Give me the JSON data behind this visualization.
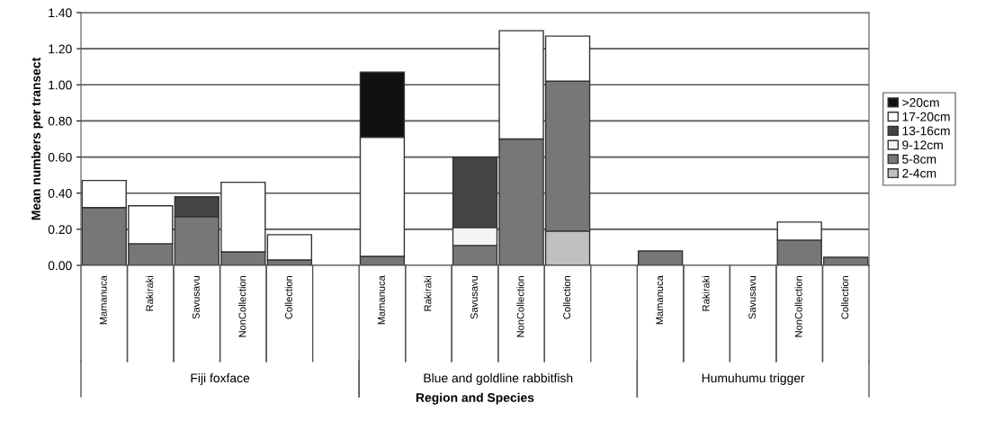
{
  "chart_data": {
    "type": "bar",
    "stacked": true,
    "xlabel": "Region and Species",
    "ylabel": "Mean numbers per transect",
    "categories": [
      "Mamanuca",
      "Rakiraki",
      "Savusavu",
      "NonCollection",
      "Collection",
      null,
      "Mamanuca",
      "Rakiraki",
      "Savusavu",
      "NonCollection",
      "Collection",
      null,
      "Mamanuca",
      "Rakiraki",
      "Savusavu",
      "NonCollection",
      "Collection"
    ],
    "annotations": [
      "Fiji foxface",
      "Blue and goldline rabbitfish",
      "Humuhumu trigger"
    ],
    "series": [
      {
        "name": "2-4cm",
        "color": "#c0c0c0",
        "values": [
          null,
          null,
          null,
          null,
          null,
          null,
          null,
          null,
          null,
          null,
          0.19,
          null,
          null,
          null,
          null,
          null,
          null
        ]
      },
      {
        "name": "5-8cm",
        "color": "#777777",
        "values": [
          0.32,
          0.12,
          0.27,
          0.075,
          0.03,
          null,
          0.05,
          null,
          0.11,
          0.7,
          0.83,
          null,
          0.08,
          null,
          null,
          0.14,
          0.045
        ]
      },
      {
        "name": "9-12cm",
        "color": "#f4f4f4",
        "values": [
          null,
          null,
          null,
          null,
          null,
          null,
          null,
          null,
          0.1,
          null,
          null,
          null,
          null,
          null,
          null,
          null,
          null
        ]
      },
      {
        "name": "13-16cm",
        "color": "#444444",
        "values": [
          null,
          null,
          0.11,
          null,
          null,
          null,
          null,
          null,
          0.39,
          null,
          null,
          null,
          null,
          null,
          null,
          null,
          null
        ]
      },
      {
        "name": "17-20cm",
        "color": "#ffffff",
        "values": [
          0.15,
          0.21,
          null,
          0.385,
          0.14,
          null,
          0.66,
          null,
          null,
          0.6,
          0.25,
          null,
          null,
          null,
          null,
          0.1,
          null
        ]
      },
      {
        "name": ">20cm",
        "color": "#111111",
        "values": [
          null,
          null,
          null,
          null,
          null,
          null,
          0.36,
          null,
          null,
          null,
          null,
          null,
          null,
          null,
          null,
          null,
          null
        ]
      }
    ],
    "ylim": [
      0,
      1.4
    ],
    "yticks": [
      {
        "value": 0,
        "label": "0.00"
      },
      {
        "value": 0.2,
        "label": "0.20"
      },
      {
        "value": 0.4,
        "label": "0.40"
      },
      {
        "value": 0.6,
        "label": "0.60"
      },
      {
        "value": 0.8,
        "label": "0.80"
      },
      {
        "value": 1.0,
        "label": "1.00"
      },
      {
        "value": 1.2,
        "label": "1.20"
      },
      {
        "value": 1.4,
        "label": "1.40"
      }
    ],
    "grid": "y",
    "legend": "right"
  }
}
